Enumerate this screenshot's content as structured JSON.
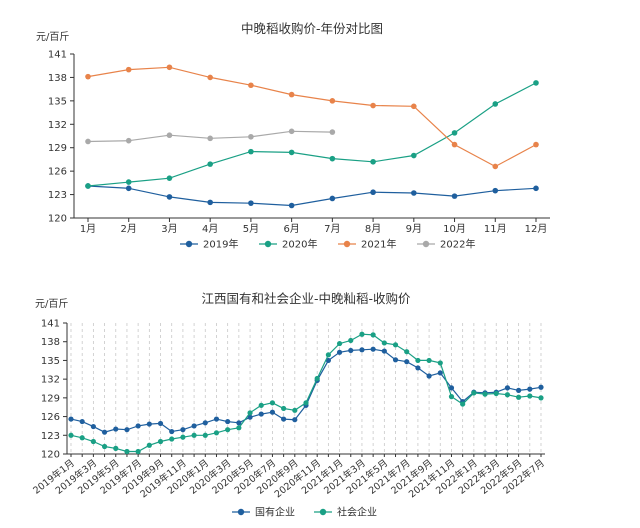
{
  "chart_data": [
    {
      "type": "line",
      "title": "中晚稻收购价-年份对比图",
      "ylabel": "元/百斤",
      "ylim": [
        120,
        141
      ],
      "yticks": [
        120,
        123,
        126,
        129,
        132,
        135,
        138,
        141
      ],
      "categories": [
        "1月",
        "2月",
        "3月",
        "4月",
        "5月",
        "6月",
        "7月",
        "8月",
        "9月",
        "10月",
        "11月",
        "12月"
      ],
      "grid": false,
      "legend_position": "bottom",
      "series": [
        {
          "name": "2019年",
          "color": "#1f5f9e",
          "values": [
            124.1,
            123.8,
            122.7,
            122.0,
            121.9,
            121.6,
            122.5,
            123.3,
            123.2,
            122.8,
            123.5,
            123.8
          ]
        },
        {
          "name": "2020年",
          "color": "#1aa085",
          "values": [
            124.1,
            124.6,
            125.1,
            126.9,
            128.5,
            128.4,
            127.6,
            127.2,
            128.0,
            130.9,
            134.6,
            137.3
          ]
        },
        {
          "name": "2021年",
          "color": "#e8834a",
          "values": [
            138.1,
            139.0,
            139.3,
            138.0,
            137.0,
            135.8,
            135.0,
            134.4,
            134.3,
            129.4,
            126.6,
            129.4
          ]
        },
        {
          "name": "2022年",
          "color": "#a9a9a9",
          "values": [
            129.8,
            129.9,
            130.6,
            130.2,
            130.4,
            131.1,
            131.0,
            null,
            null,
            null,
            null,
            null
          ]
        }
      ]
    },
    {
      "type": "line",
      "title": "江西国有和社会企业-中晚籼稻-收购价",
      "ylabel": "元/百斤",
      "ylim": [
        120,
        141
      ],
      "yticks": [
        120,
        123,
        126,
        129,
        132,
        135,
        138,
        141
      ],
      "categories": [
        "2019年1月",
        "2019年2月",
        "2019年3月",
        "2019年4月",
        "2019年5月",
        "2019年6月",
        "2019年7月",
        "2019年8月",
        "2019年9月",
        "2019年10月",
        "2019年11月",
        "2019年12月",
        "2020年1月",
        "2020年2月",
        "2020年3月",
        "2020年4月",
        "2020年5月",
        "2020年6月",
        "2020年7月",
        "2020年8月",
        "2020年9月",
        "2020年10月",
        "2020年11月",
        "2020年12月",
        "2021年1月",
        "2021年2月",
        "2021年3月",
        "2021年4月",
        "2021年5月",
        "2021年6月",
        "2021年7月",
        "2021年8月",
        "2021年9月",
        "2021年10月",
        "2021年11月",
        "2021年12月",
        "2022年1月",
        "2022年2月",
        "2022年3月",
        "2022年4月",
        "2022年5月",
        "2022年6月",
        "2022年7月"
      ],
      "xtick_labels": [
        "2019年1月",
        "2019年3月",
        "2019年5月",
        "2019年7月",
        "2019年9月",
        "2019年11月",
        "2020年1月",
        "2020年3月",
        "2020年5月",
        "2020年7月",
        "2020年9月",
        "2020年11月",
        "2021年1月",
        "2021年3月",
        "2021年5月",
        "2021年7月",
        "2021年9月",
        "2021年11月",
        "2022年1月",
        "2022年3月",
        "2022年5月",
        "2022年7月"
      ],
      "grid": "dashed vertical",
      "legend_position": "bottom",
      "series": [
        {
          "name": "国有企业",
          "color": "#1f5f9e",
          "values": [
            125.6,
            125.2,
            124.4,
            123.5,
            124.0,
            123.9,
            124.5,
            124.8,
            124.9,
            123.6,
            123.9,
            124.5,
            125.0,
            125.6,
            125.2,
            125.0,
            125.9,
            126.4,
            126.7,
            125.6,
            125.5,
            127.8,
            131.8,
            135.0,
            136.3,
            136.6,
            136.7,
            136.8,
            136.5,
            135.1,
            134.8,
            133.8,
            132.5,
            133.0,
            130.6,
            128.4,
            129.9,
            129.8,
            129.9,
            130.6,
            130.2,
            130.4,
            130.7
          ]
        },
        {
          "name": "社会企业",
          "color": "#1aa085",
          "values": [
            123.0,
            122.6,
            122.0,
            121.2,
            120.9,
            120.4,
            120.4,
            121.4,
            122.0,
            122.4,
            122.7,
            123.0,
            123.0,
            123.4,
            123.9,
            124.2,
            126.6,
            127.8,
            128.2,
            127.3,
            127.0,
            128.2,
            132.1,
            135.9,
            137.7,
            138.2,
            139.2,
            139.1,
            137.8,
            137.5,
            136.4,
            135.0,
            135.0,
            134.6,
            129.2,
            128.0,
            129.8,
            129.6,
            129.7,
            129.5,
            129.1,
            129.3,
            129.0
          ]
        }
      ]
    }
  ]
}
